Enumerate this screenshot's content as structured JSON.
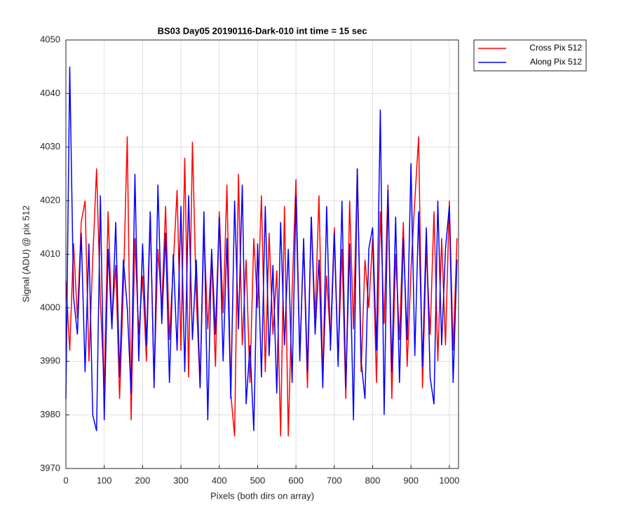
{
  "chart_data": {
    "type": "line",
    "title": "BS03 Day05 20190116-Dark-010 int time = 15 sec",
    "xlabel": "Pixels (both dirs on array)",
    "ylabel": "Signal (ADU) @ pix 512",
    "x": [
      0,
      10,
      20,
      30,
      40,
      50,
      60,
      70,
      80,
      90,
      100,
      110,
      120,
      130,
      140,
      150,
      160,
      170,
      180,
      190,
      200,
      210,
      220,
      230,
      240,
      250,
      260,
      270,
      280,
      290,
      300,
      310,
      320,
      330,
      340,
      350,
      360,
      370,
      380,
      390,
      400,
      410,
      420,
      430,
      440,
      450,
      460,
      470,
      480,
      490,
      500,
      510,
      520,
      530,
      540,
      550,
      560,
      570,
      580,
      590,
      600,
      610,
      620,
      630,
      640,
      650,
      660,
      670,
      680,
      690,
      700,
      710,
      720,
      730,
      740,
      750,
      760,
      770,
      780,
      790,
      800,
      810,
      820,
      830,
      840,
      850,
      860,
      870,
      880,
      890,
      900,
      910,
      920,
      930,
      940,
      950,
      960,
      970,
      980,
      990,
      1000,
      1010,
      1020
    ],
    "series": [
      {
        "name": "Cross Pix 512",
        "color": "#ff0000",
        "values": [
          4005,
          3992,
          4012,
          3998,
          4016,
          4020,
          3990,
          4009,
          4026,
          4001,
          3985,
          4018,
          3997,
          4008,
          3983,
          4004,
          4032,
          3979,
          4013,
          3995,
          4006,
          3990,
          4017,
          3986,
          4011,
          4000,
          4019,
          3994,
          4008,
          4022,
          3992,
          4028,
          3987,
          4031,
          4002,
          3985,
          4015,
          3996,
          4010,
          3989,
          4018,
          3999,
          4023,
          3984,
          3976,
          4025,
          3993,
          4009,
          3986,
          4013,
          4000,
          4021,
          3988,
          4014,
          3995,
          4007,
          3976,
          4019,
          3976,
          4003,
          4024,
          3991,
          4012,
          3985,
          4017,
          3998,
          4021,
          3987,
          4006,
          3994,
          4015,
          3990,
          4011,
          3983,
          4020,
          3996,
          4026,
          3988,
          4009,
          4000,
          4013,
          3986,
          4018,
          3997,
          4023,
          3983,
          4010,
          3994,
          4016,
          3989,
          4007,
          4020,
          4032,
          3985,
          4011,
          3995,
          4018,
          3990,
          4013,
          3993,
          4020,
          3992,
          4013
        ]
      },
      {
        "name": "Along Pix 512",
        "color": "#0000ff",
        "values": [
          3983,
          4045,
          4002,
          3995,
          4014,
          3988,
          4012,
          3980,
          3977,
          4021,
          3979,
          4011,
          3996,
          4016,
          3987,
          4009,
          4000,
          3984,
          4025,
          3990,
          4012,
          3993,
          4018,
          3985,
          4023,
          3997,
          4014,
          3986,
          4010,
          3992,
          4019,
          3988,
          4021,
          3994,
          4009,
          3985,
          4018,
          3979,
          4011,
          3995,
          4017,
          3990,
          4013,
          3983,
          4020,
          3996,
          4023,
          3982,
          3993,
          3977,
          4012,
          3987,
          4019,
          3991,
          4008,
          3984,
          4016,
          3993,
          4011,
          3986,
          4021,
          3990,
          4013,
          3988,
          4017,
          3995,
          4009,
          3985,
          4019,
          3992,
          4014,
          3989,
          4020,
          3985,
          4012,
          3979,
          4026,
          3990,
          3983,
          4011,
          4015,
          3992,
          4037,
          3980,
          4022,
          3988,
          4017,
          3986,
          4013,
          3994,
          4027,
          3991,
          4018,
          3989,
          4015,
          3987,
          3982,
          4020,
          3993,
          4011,
          4019,
          3986,
          4009
        ]
      }
    ],
    "xlim": [
      0,
      1024
    ],
    "ylim": [
      3970,
      4050
    ],
    "xticks": [
      0,
      100,
      200,
      300,
      400,
      500,
      600,
      700,
      800,
      900,
      1000
    ],
    "yticks": [
      3970,
      3980,
      3990,
      4000,
      4010,
      4020,
      4030,
      4040,
      4050
    ],
    "grid": true,
    "legend": "northeastoutside"
  }
}
